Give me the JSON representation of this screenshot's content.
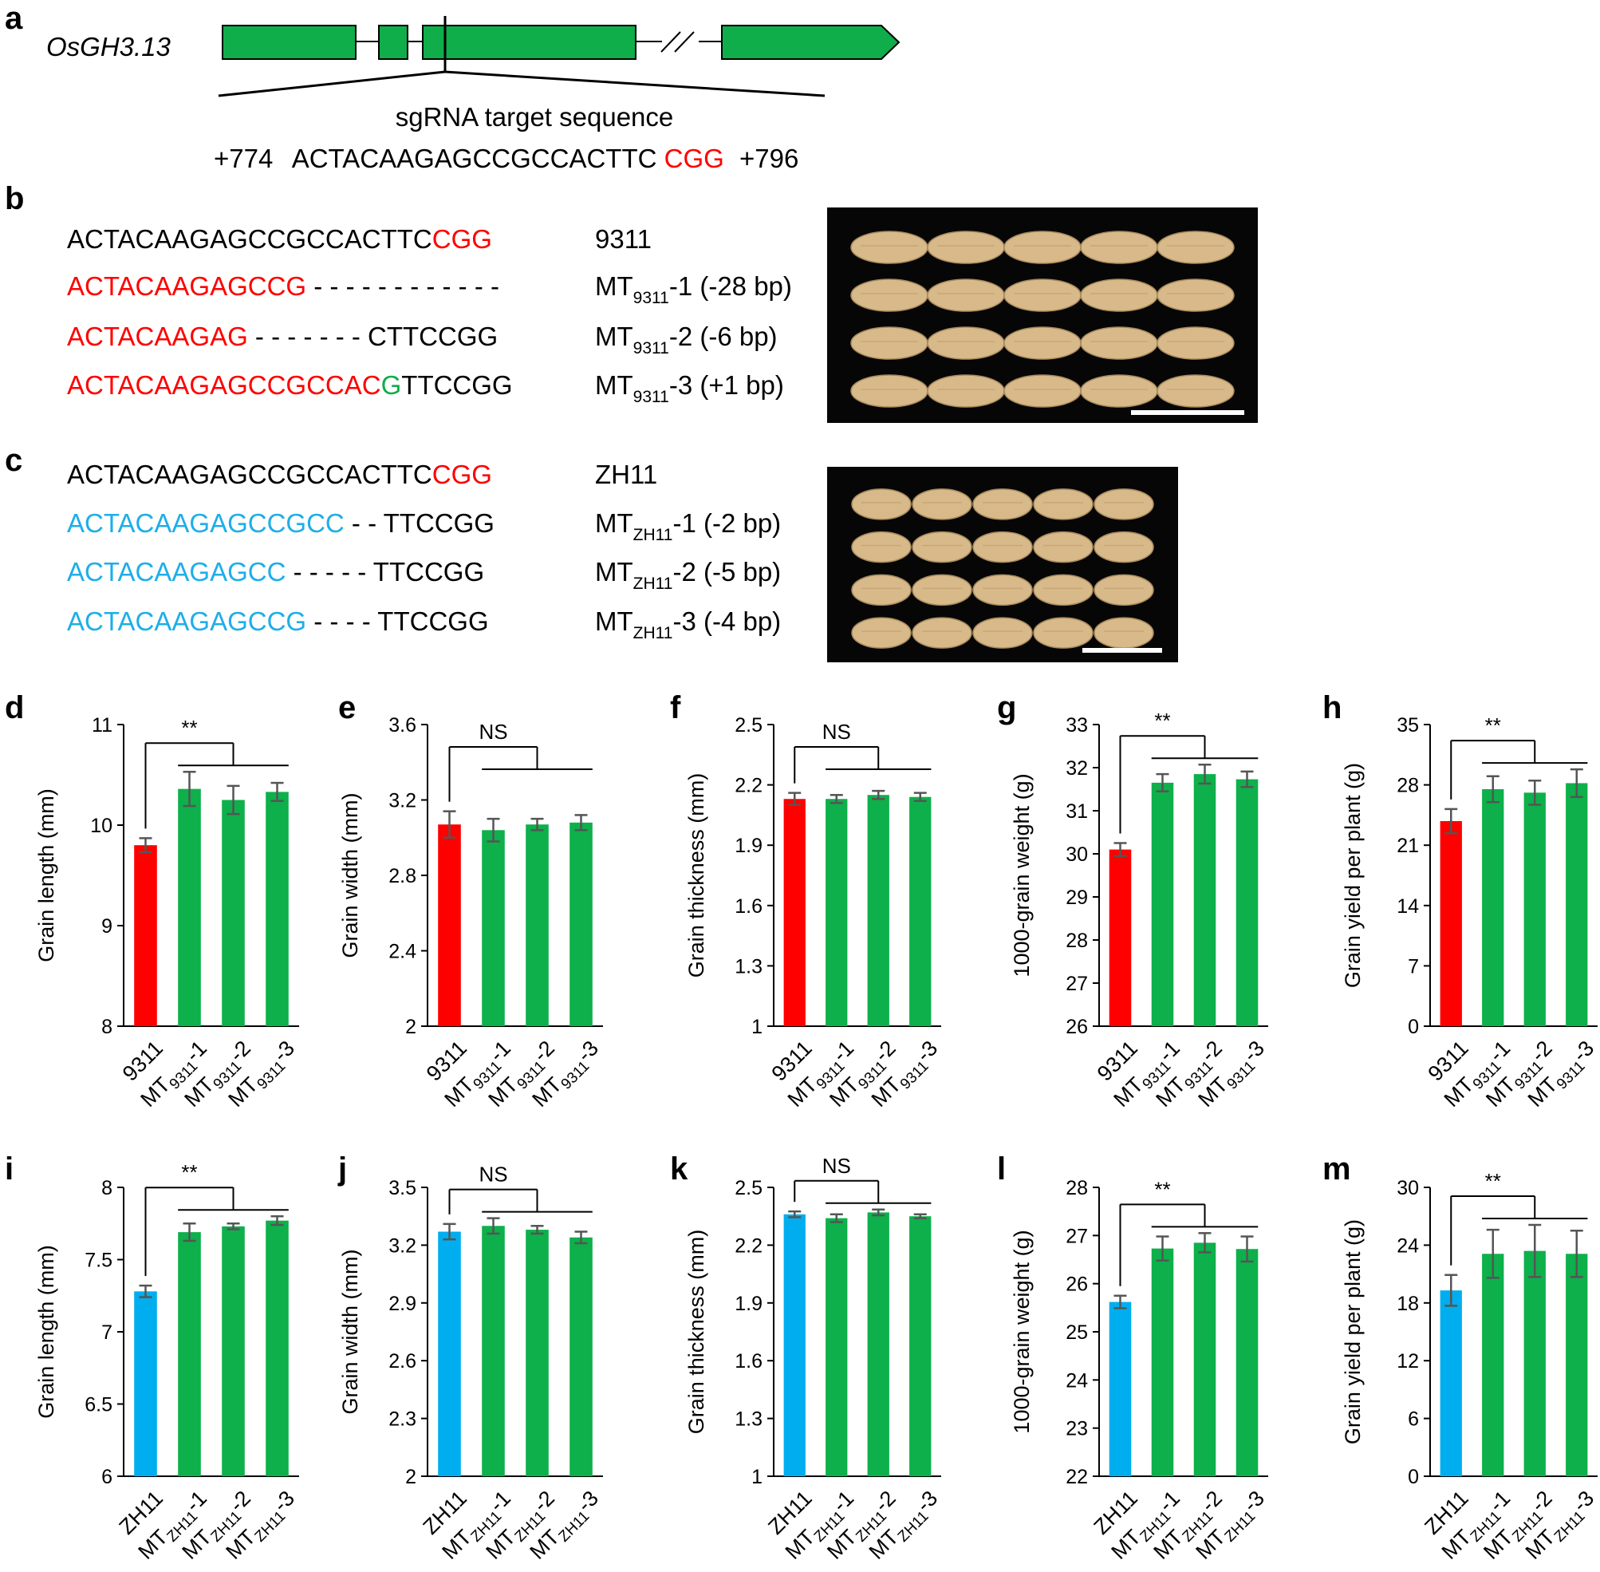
{
  "colors": {
    "exon": "#10ad4b",
    "red": "#ff0000",
    "green_base": "#10ad4b",
    "blue": "#1eaee8",
    "bar_wt_9311": "#ff0000",
    "bar_wt_zh11": "#00aeef",
    "bar_mutant": "#0db04b",
    "error_bar": "#555555",
    "photo_bg": "#060606",
    "grain": "#d8b98a"
  },
  "panel_a": {
    "letter": "a",
    "gene": "OsGH3.13",
    "sgrna_label": "sgRNA target sequence",
    "pos_start": "+774",
    "target": "ACTACAAGAGCCGCCACTTC",
    "pam": "CGG",
    "pos_end": "+796"
  },
  "panel_b": {
    "letter": "b",
    "rows": [
      {
        "segments": [
          {
            "text": "ACTACAAGAGCCGCCACTTC",
            "color": "black"
          },
          {
            "text": "CGG",
            "color": "red"
          }
        ],
        "name": "9311",
        "sub": "",
        "suffix": ""
      },
      {
        "segments": [
          {
            "text": "ACTACAAGAGCCG",
            "color": "red"
          },
          {
            "text": " - - - - - - - - - - - -",
            "color": "black"
          }
        ],
        "name": "MT",
        "sub": "9311",
        "suffix": "-1 (-28 bp)"
      },
      {
        "segments": [
          {
            "text": "ACTACAAGAG",
            "color": "red"
          },
          {
            "text": " - - - - - - - CTTCCGG",
            "color": "black"
          }
        ],
        "name": "MT",
        "sub": "9311",
        "suffix": "-2 (-6 bp)"
      },
      {
        "segments": [
          {
            "text": "ACTACAAGAGCCGCCAC",
            "color": "red"
          },
          {
            "text": "G",
            "color": "green"
          },
          {
            "text": "TTCCGG",
            "color": "black"
          }
        ],
        "name": "MT",
        "sub": "9311",
        "suffix": "-3 (+1 bp)"
      }
    ],
    "photo_rows": 4,
    "grains_per_row": 5
  },
  "panel_c": {
    "letter": "c",
    "rows": [
      {
        "segments": [
          {
            "text": "ACTACAAGAGCCGCCACTTC",
            "color": "black"
          },
          {
            "text": "CGG",
            "color": "red"
          }
        ],
        "name": "ZH11",
        "sub": "",
        "suffix": ""
      },
      {
        "segments": [
          {
            "text": "ACTACAAGAGCCGCC",
            "color": "blue"
          },
          {
            "text": " - - TTCCGG",
            "color": "black"
          }
        ],
        "name": "MT",
        "sub": "ZH11",
        "suffix": "-1 (-2 bp)"
      },
      {
        "segments": [
          {
            "text": "ACTACAAGAGCC",
            "color": "blue"
          },
          {
            "text": " - - - - -  TTCCGG",
            "color": "black"
          }
        ],
        "name": "MT",
        "sub": "ZH11",
        "suffix": "-2 (-5 bp)"
      },
      {
        "segments": [
          {
            "text": "ACTACAAGAGCCG",
            "color": "blue"
          },
          {
            "text": " - - - - TTCCGG",
            "color": "black"
          }
        ],
        "name": "MT",
        "sub": "ZH11",
        "suffix": "-3 (-4 bp)"
      }
    ],
    "photo_rows": 4,
    "grains_per_row": 5
  },
  "chart_data": [
    {
      "panel": "d",
      "type": "bar",
      "ylabel": "Grain length (mm)",
      "ylim": [
        8,
        11
      ],
      "yticks": [
        "8",
        "9",
        "10",
        "11"
      ],
      "categories": [
        {
          "main": "9311",
          "sub": "",
          "suf": ""
        },
        {
          "main": "MT",
          "sub": "9311",
          "suf": "-1"
        },
        {
          "main": "MT",
          "sub": "9311",
          "suf": "-2"
        },
        {
          "main": "MT",
          "sub": "9311",
          "suf": "-3"
        }
      ],
      "values": [
        9.8,
        10.36,
        10.25,
        10.33
      ],
      "errors": [
        0.07,
        0.17,
        0.14,
        0.09
      ],
      "sig": "**",
      "wt": "9311"
    },
    {
      "panel": "e",
      "type": "bar",
      "ylabel": "Grain width (mm)",
      "ylim": [
        2,
        3.6
      ],
      "yticks": [
        "2",
        "2.4",
        "2.8",
        "3.2",
        "3.6"
      ],
      "categories": [
        {
          "main": "9311",
          "sub": "",
          "suf": ""
        },
        {
          "main": "MT",
          "sub": "9311",
          "suf": "-1"
        },
        {
          "main": "MT",
          "sub": "9311",
          "suf": "-2"
        },
        {
          "main": "MT",
          "sub": "9311",
          "suf": "-3"
        }
      ],
      "values": [
        3.07,
        3.04,
        3.07,
        3.08
      ],
      "errors": [
        0.07,
        0.06,
        0.03,
        0.04
      ],
      "sig": "NS",
      "wt": "9311"
    },
    {
      "panel": "f",
      "type": "bar",
      "ylabel": "Grain thickness (mm)",
      "ylim": [
        1,
        2.5
      ],
      "yticks": [
        "1",
        "1.3",
        "1.6",
        "1.9",
        "2.2",
        "2.5"
      ],
      "categories": [
        {
          "main": "9311",
          "sub": "",
          "suf": ""
        },
        {
          "main": "MT",
          "sub": "9311",
          "suf": "-1"
        },
        {
          "main": "MT",
          "sub": "9311",
          "suf": "-2"
        },
        {
          "main": "MT",
          "sub": "9311",
          "suf": "-3"
        }
      ],
      "values": [
        2.13,
        2.13,
        2.15,
        2.14
      ],
      "errors": [
        0.03,
        0.02,
        0.02,
        0.02
      ],
      "sig": "NS",
      "wt": "9311"
    },
    {
      "panel": "g",
      "type": "bar",
      "ylabel": "1000-grain weight (g)",
      "ylim": [
        26,
        33
      ],
      "yticks": [
        "26",
        "27",
        "28",
        "29",
        "30",
        "31",
        "32",
        "33"
      ],
      "categories": [
        {
          "main": "9311",
          "sub": "",
          "suf": ""
        },
        {
          "main": "MT",
          "sub": "9311",
          "suf": "-1"
        },
        {
          "main": "MT",
          "sub": "9311",
          "suf": "-2"
        },
        {
          "main": "MT",
          "sub": "9311",
          "suf": "-3"
        }
      ],
      "values": [
        30.1,
        31.65,
        31.85,
        31.73
      ],
      "errors": [
        0.15,
        0.2,
        0.22,
        0.18
      ],
      "sig": "**",
      "wt": "9311"
    },
    {
      "panel": "h",
      "type": "bar",
      "ylabel": "Grain yield per plant (g)",
      "ylim": [
        0,
        35
      ],
      "yticks": [
        "0",
        "7",
        "14",
        "21",
        "28",
        "35"
      ],
      "categories": [
        {
          "main": "9311",
          "sub": "",
          "suf": ""
        },
        {
          "main": "MT",
          "sub": "9311",
          "suf": "-1"
        },
        {
          "main": "MT",
          "sub": "9311",
          "suf": "-2"
        },
        {
          "main": "MT",
          "sub": "9311",
          "suf": "-3"
        }
      ],
      "values": [
        23.8,
        27.5,
        27.1,
        28.2
      ],
      "errors": [
        1.4,
        1.5,
        1.4,
        1.6
      ],
      "sig": "**",
      "wt": "9311"
    },
    {
      "panel": "i",
      "type": "bar",
      "ylabel": "Grain length (mm)",
      "ylim": [
        6,
        8
      ],
      "yticks": [
        "6",
        "6.5",
        "7",
        "7.5",
        "8"
      ],
      "categories": [
        {
          "main": "ZH11",
          "sub": "",
          "suf": ""
        },
        {
          "main": "MT",
          "sub": "ZH11",
          "suf": "-1"
        },
        {
          "main": "MT",
          "sub": "ZH11",
          "suf": "-2"
        },
        {
          "main": "MT",
          "sub": "ZH11",
          "suf": "-3"
        }
      ],
      "values": [
        7.28,
        7.69,
        7.73,
        7.77
      ],
      "errors": [
        0.04,
        0.06,
        0.02,
        0.03
      ],
      "sig": "**",
      "wt": "ZH11"
    },
    {
      "panel": "j",
      "type": "bar",
      "ylabel": "Grain width (mm)",
      "ylim": [
        2,
        3.5
      ],
      "yticks": [
        "2",
        "2.3",
        "2.6",
        "2.9",
        "3.2",
        "3.5"
      ],
      "categories": [
        {
          "main": "ZH11",
          "sub": "",
          "suf": ""
        },
        {
          "main": "MT",
          "sub": "ZH11",
          "suf": "-1"
        },
        {
          "main": "MT",
          "sub": "ZH11",
          "suf": "-2"
        },
        {
          "main": "MT",
          "sub": "ZH11",
          "suf": "-3"
        }
      ],
      "values": [
        3.27,
        3.3,
        3.28,
        3.24
      ],
      "errors": [
        0.04,
        0.04,
        0.02,
        0.03
      ],
      "sig": "NS",
      "wt": "ZH11"
    },
    {
      "panel": "k",
      "type": "bar",
      "ylabel": "Grain thickness (mm)",
      "ylim": [
        1,
        2.5
      ],
      "yticks": [
        "1",
        "1.3",
        "1.6",
        "1.9",
        "2.2",
        "2.5"
      ],
      "categories": [
        {
          "main": "ZH11",
          "sub": "",
          "suf": ""
        },
        {
          "main": "MT",
          "sub": "ZH11",
          "suf": "-1"
        },
        {
          "main": "MT",
          "sub": "ZH11",
          "suf": "-2"
        },
        {
          "main": "MT",
          "sub": "ZH11",
          "suf": "-3"
        }
      ],
      "values": [
        2.36,
        2.34,
        2.37,
        2.35
      ],
      "errors": [
        0.015,
        0.02,
        0.015,
        0.01
      ],
      "sig": "NS",
      "wt": "ZH11"
    },
    {
      "panel": "l",
      "type": "bar",
      "ylabel": "1000-grain weight (g)",
      "ylim": [
        22,
        28
      ],
      "yticks": [
        "22",
        "23",
        "24",
        "25",
        "26",
        "27",
        "28"
      ],
      "categories": [
        {
          "main": "ZH11",
          "sub": "",
          "suf": ""
        },
        {
          "main": "MT",
          "sub": "ZH11",
          "suf": "-1"
        },
        {
          "main": "MT",
          "sub": "ZH11",
          "suf": "-2"
        },
        {
          "main": "MT",
          "sub": "ZH11",
          "suf": "-3"
        }
      ],
      "values": [
        25.62,
        26.73,
        26.85,
        26.72
      ],
      "errors": [
        0.13,
        0.25,
        0.2,
        0.26
      ],
      "sig": "**",
      "wt": "ZH11"
    },
    {
      "panel": "m",
      "type": "bar",
      "ylabel": "Grain yield per plant (g)",
      "ylim": [
        0,
        30
      ],
      "yticks": [
        "0",
        "6",
        "12",
        "18",
        "24",
        "30"
      ],
      "categories": [
        {
          "main": "ZH11",
          "sub": "",
          "suf": ""
        },
        {
          "main": "MT",
          "sub": "ZH11",
          "suf": "-1"
        },
        {
          "main": "MT",
          "sub": "ZH11",
          "suf": "-2"
        },
        {
          "main": "MT",
          "sub": "ZH11",
          "suf": "-3"
        }
      ],
      "values": [
        19.3,
        23.1,
        23.4,
        23.1
      ],
      "errors": [
        1.6,
        2.5,
        2.7,
        2.4
      ],
      "sig": "**",
      "wt": "ZH11"
    }
  ]
}
